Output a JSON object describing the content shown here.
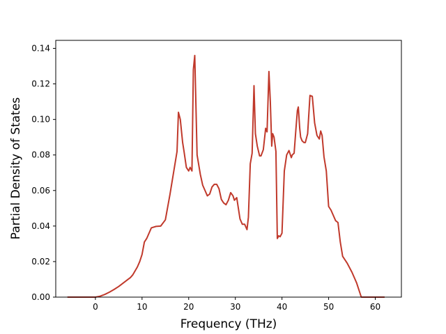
{
  "chart_data": {
    "type": "line",
    "title": "",
    "xlabel": "Frequency (THz)",
    "ylabel": "Partial Density of States",
    "xlim": [
      -8.5,
      65.6
    ],
    "ylim": [
      0.0,
      0.1445
    ],
    "xticks": [
      0,
      10,
      20,
      30,
      40,
      50,
      60
    ],
    "xtick_labels": [
      "0",
      "10",
      "20",
      "30",
      "40",
      "50",
      "60"
    ],
    "yticks": [
      0.0,
      0.02,
      0.04,
      0.06,
      0.08,
      0.1,
      0.12,
      0.14
    ],
    "ytick_labels": [
      "0.00",
      "0.02",
      "0.04",
      "0.06",
      "0.08",
      "0.10",
      "0.12",
      "0.14"
    ],
    "grid": false,
    "legend": "none",
    "series": [
      {
        "color": "#c0392b",
        "x": [
          -6.0,
          -3.0,
          0.0,
          1.0,
          2.0,
          3.0,
          4.0,
          5.0,
          6.0,
          7.0,
          7.5,
          8.0,
          9.0,
          9.5,
          10.0,
          10.5,
          11.0,
          12.0,
          13.0,
          14.0,
          15.0,
          16.0,
          16.5,
          17.0,
          17.5,
          17.8,
          18.2,
          18.7,
          19.0,
          19.5,
          20.0,
          20.3,
          20.7,
          21.0,
          21.3,
          21.8,
          22.5,
          23.0,
          23.5,
          24.0,
          24.5,
          25.0,
          25.5,
          26.0,
          26.5,
          27.0,
          27.5,
          28.0,
          28.5,
          29.0,
          29.5,
          29.8,
          30.3,
          31.0,
          31.5,
          32.0,
          32.5,
          32.8,
          33.2,
          33.6,
          34.0,
          34.3,
          34.7,
          35.2,
          35.5,
          36.0,
          36.5,
          36.8,
          37.2,
          37.5,
          37.8,
          38.0,
          38.3,
          38.7,
          39.0,
          39.3,
          39.6,
          40.0,
          40.5,
          41.0,
          41.5,
          42.0,
          42.2,
          42.6,
          43.0,
          43.3,
          43.5,
          43.8,
          44.0,
          44.3,
          44.7,
          45.0,
          45.5,
          46.0,
          46.5,
          47.0,
          47.5,
          48.0,
          48.3,
          48.6,
          49.0,
          49.5,
          50.0,
          50.5,
          51.0,
          51.5,
          52.0,
          52.5,
          53.0,
          54.0,
          55.0,
          55.5,
          56.0,
          56.5,
          57.0,
          60.0,
          62.0
        ],
        "y": [
          0.0,
          0.0,
          0.0,
          0.0005,
          0.0015,
          0.0028,
          0.0043,
          0.006,
          0.008,
          0.01,
          0.011,
          0.0125,
          0.017,
          0.02,
          0.024,
          0.031,
          0.033,
          0.039,
          0.0398,
          0.04,
          0.0435,
          0.058,
          0.066,
          0.074,
          0.082,
          0.104,
          0.1,
          0.087,
          0.082,
          0.073,
          0.071,
          0.073,
          0.071,
          0.128,
          0.136,
          0.08,
          0.069,
          0.063,
          0.06,
          0.057,
          0.058,
          0.062,
          0.0635,
          0.0635,
          0.061,
          0.055,
          0.053,
          0.052,
          0.0545,
          0.0588,
          0.057,
          0.0545,
          0.056,
          0.044,
          0.041,
          0.041,
          0.038,
          0.045,
          0.075,
          0.081,
          0.119,
          0.092,
          0.085,
          0.0795,
          0.0795,
          0.083,
          0.095,
          0.093,
          0.127,
          0.11,
          0.085,
          0.092,
          0.09,
          0.082,
          0.033,
          0.0345,
          0.034,
          0.036,
          0.071,
          0.08,
          0.0825,
          0.0785,
          0.08,
          0.081,
          0.095,
          0.105,
          0.107,
          0.095,
          0.09,
          0.088,
          0.087,
          0.087,
          0.092,
          0.1135,
          0.113,
          0.098,
          0.091,
          0.089,
          0.0935,
          0.091,
          0.079,
          0.071,
          0.051,
          0.049,
          0.046,
          0.043,
          0.042,
          0.031,
          0.023,
          0.019,
          0.014,
          0.011,
          0.008,
          0.004,
          0.0,
          0.0,
          0.0
        ]
      }
    ]
  }
}
